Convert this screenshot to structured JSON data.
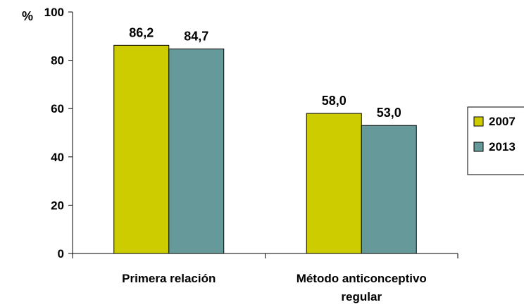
{
  "chart_data": {
    "type": "bar",
    "categories": [
      [
        "Primera relación"
      ],
      [
        "Método anticonceptivo",
        "regular"
      ]
    ],
    "series": [
      {
        "name": "2007",
        "color": "#cccc00",
        "values": [
          86.2,
          58.0
        ],
        "labels": [
          "86,2",
          "58,0"
        ]
      },
      {
        "name": "2013",
        "color": "#669999",
        "values": [
          84.7,
          53.0
        ],
        "labels": [
          "84,7",
          "53,0"
        ]
      }
    ],
    "y_unit": "%",
    "ylim": [
      0,
      100
    ],
    "yticks": [
      0,
      20,
      40,
      60,
      80,
      100
    ],
    "legend_position": "right",
    "grid": false
  }
}
